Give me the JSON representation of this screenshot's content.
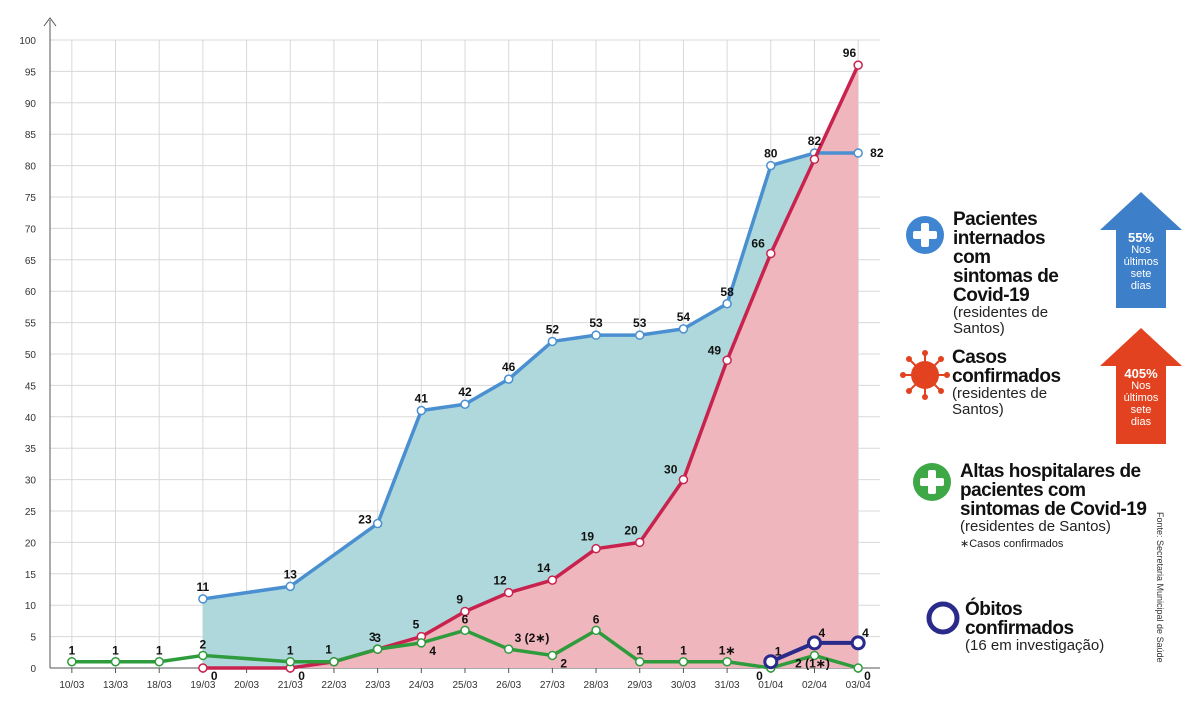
{
  "chart_data": {
    "type": "line",
    "categories": [
      "10/03",
      "13/03",
      "18/03",
      "19/03",
      "20/03",
      "21/03",
      "22/03",
      "23/03",
      "24/03",
      "25/03",
      "26/03",
      "27/03",
      "28/03",
      "29/03",
      "30/03",
      "31/03",
      "01/04",
      "02/04",
      "03/04"
    ],
    "ylim": [
      0,
      100
    ],
    "yticks": [
      0,
      5,
      10,
      15,
      20,
      25,
      30,
      35,
      40,
      45,
      50,
      55,
      60,
      65,
      70,
      75,
      80,
      85,
      90,
      95,
      100
    ],
    "grid": true,
    "series": [
      {
        "name": "Pacientes internados com sintomas de Covid-19",
        "color": "#4a8fd0",
        "fill": "#aed8dc",
        "values": [
          null,
          null,
          null,
          11,
          null,
          13,
          null,
          23,
          41,
          42,
          46,
          52,
          53,
          53,
          54,
          58,
          80,
          82,
          82
        ],
        "labels": [
          null,
          null,
          null,
          "11",
          null,
          "13",
          null,
          "23",
          "41",
          "42",
          "46",
          "52",
          "53",
          "53",
          "54",
          "58",
          "80",
          "82",
          "82"
        ]
      },
      {
        "name": "Casos confirmados",
        "color": "#c8234e",
        "fill": "#f0b6bd",
        "values": [
          null,
          null,
          null,
          0,
          null,
          0,
          1,
          3,
          5,
          9,
          12,
          14,
          19,
          20,
          30,
          49,
          66,
          81,
          96
        ],
        "labels": [
          null,
          null,
          null,
          "0",
          null,
          "0",
          "1",
          "3",
          "5",
          "9",
          "12",
          "14",
          "19",
          "20",
          "30",
          "49",
          "66",
          null,
          "96"
        ]
      },
      {
        "name": "Altas hospitalares de pacientes com sintomas de Covid-19",
        "color": "#2e9b3c",
        "values": [
          1,
          1,
          1,
          2,
          null,
          1,
          1,
          3,
          4,
          6,
          3,
          2,
          6,
          1,
          1,
          1,
          0,
          2,
          0
        ],
        "labels": [
          "1",
          "1",
          "1",
          "2",
          null,
          "1",
          null,
          "3",
          "4",
          "6",
          "3 (2∗)",
          "2",
          "6",
          "1",
          "1",
          "1∗",
          "0",
          "2 (1∗)",
          "0"
        ]
      },
      {
        "name": "Óbitos confirmados",
        "color": "#2a2a8a",
        "values": [
          null,
          null,
          null,
          null,
          null,
          null,
          null,
          null,
          null,
          null,
          null,
          null,
          null,
          null,
          null,
          null,
          1,
          4,
          4
        ],
        "labels": [
          null,
          null,
          null,
          null,
          null,
          null,
          null,
          null,
          null,
          null,
          null,
          null,
          null,
          null,
          null,
          null,
          "1",
          "4",
          "4"
        ]
      }
    ]
  },
  "legend": {
    "internados": {
      "title": "Pacientes internados com sintomas de Covid-19",
      "sub": "(residentes de Santos)",
      "arrow_pct": "55%",
      "arrow_text": "Nos últimos sete dias",
      "arrow_color": "#3d7fc8"
    },
    "casos": {
      "title": "Casos confirmados",
      "sub": "(residentes de Santos)",
      "arrow_pct": "405%",
      "arrow_text": "Nos últimos sete dias",
      "arrow_color": "#e2421f"
    },
    "altas": {
      "title": "Altas hospitalares de pacientes com sintomas de Covid-19",
      "sub": "(residentes de Santos)",
      "note": "∗Casos confirmados"
    },
    "obitos": {
      "title": "Óbitos confirmados",
      "sub": "(16 em investigação)"
    }
  },
  "source": "Fonte: Secretaria Municipal de Saúde"
}
